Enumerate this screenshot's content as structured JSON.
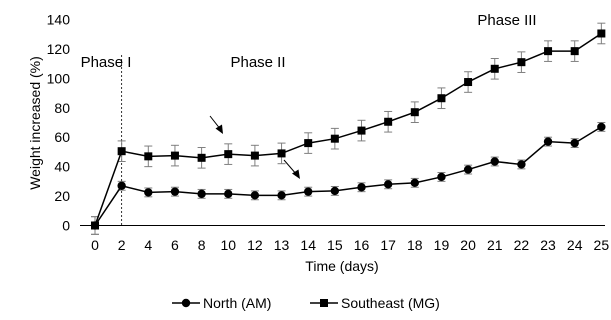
{
  "chart_data": {
    "type": "line",
    "xlabel": "Time (days)",
    "ylabel": "Weight increased (%)",
    "ylim": [
      0,
      140
    ],
    "yticks": [
      "0",
      "20",
      "40",
      "60",
      "80",
      "100",
      "120",
      "140"
    ],
    "x": [
      "0",
      "2",
      "4",
      "6",
      "8",
      "10",
      "12",
      "13",
      "14",
      "15",
      "16",
      "17",
      "18",
      "19",
      "20",
      "21",
      "22",
      "23",
      "24",
      "25"
    ],
    "series": [
      {
        "name": "North (AM)",
        "marker": "circle",
        "values": [
          0,
          27,
          22.5,
          23,
          21.5,
          21.5,
          20.5,
          20.5,
          23,
          23.5,
          26,
          28,
          29,
          33,
          38,
          43.5,
          41.5,
          57,
          56,
          67
        ],
        "errors": [
          6,
          3,
          3,
          3,
          3,
          3,
          3,
          3,
          3,
          3,
          3,
          3,
          3,
          3,
          3,
          3,
          3,
          3,
          3,
          3
        ]
      },
      {
        "name": "Southeast (MG)",
        "marker": "square",
        "values": [
          0,
          50.5,
          47,
          47.5,
          46,
          48.5,
          47.5,
          49,
          56,
          59,
          64.5,
          70.5,
          77,
          86.5,
          97.5,
          106.5,
          111,
          118.5,
          118.5,
          130.5
        ],
        "errors": [
          6,
          7,
          7,
          7,
          7,
          7,
          7,
          7,
          7,
          7,
          7,
          7,
          7,
          7,
          7,
          7,
          7,
          7,
          7,
          7
        ]
      }
    ],
    "annotations": {
      "phase1": "Phase I",
      "phase2": "Phase II",
      "phase3": "Phase III"
    },
    "legend_position": "bottom",
    "grid": false,
    "colors": {
      "line": "#000000",
      "error_bar": "#7f7f7f",
      "axis": "#000000"
    }
  }
}
